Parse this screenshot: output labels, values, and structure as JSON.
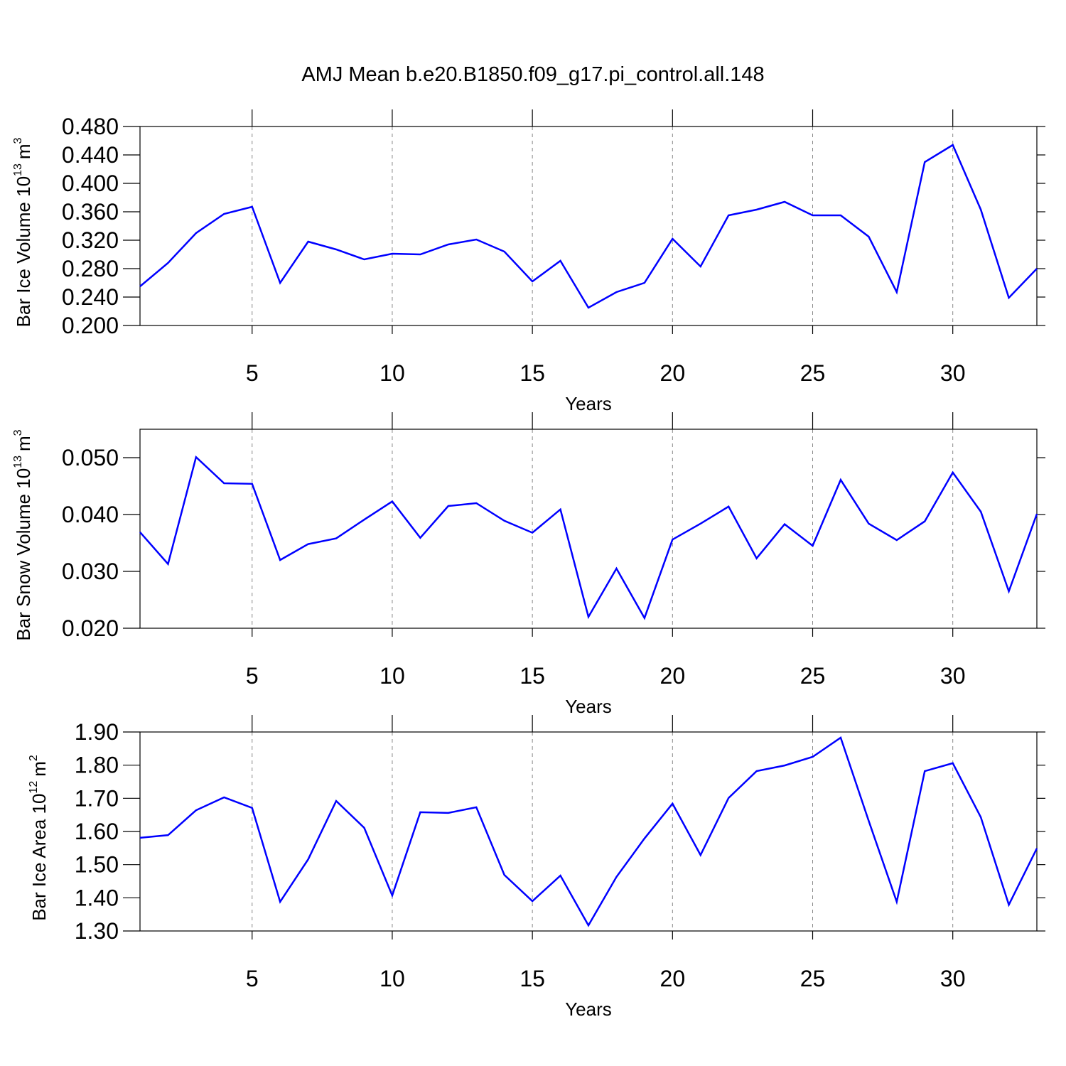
{
  "chart_data": [
    {
      "type": "line",
      "title": "AMJ Mean b.e20.B1850.f09_g17.pi_control.all.148",
      "ylabel": [
        "Bar Ice Volume 10",
        "13",
        "m",
        "3"
      ],
      "xlabel": "Years",
      "x": [
        1,
        2,
        3,
        4,
        5,
        6,
        7,
        8,
        9,
        10,
        11,
        12,
        13,
        14,
        15,
        16,
        17,
        18,
        19,
        20,
        21,
        22,
        23,
        24,
        25,
        26,
        27,
        28,
        29,
        30,
        31,
        32,
        33
      ],
      "values": [
        0.255,
        0.288,
        0.33,
        0.357,
        0.367,
        0.26,
        0.318,
        0.307,
        0.293,
        0.301,
        0.3,
        0.314,
        0.321,
        0.304,
        0.262,
        0.291,
        0.225,
        0.247,
        0.26,
        0.322,
        0.283,
        0.355,
        0.363,
        0.374,
        0.355,
        0.355,
        0.325,
        0.247,
        0.43,
        0.454,
        0.363,
        0.239,
        0.28
      ],
      "color": "#0000ff",
      "xlim": [
        1,
        33
      ],
      "xticks": [
        5,
        10,
        15,
        20,
        25,
        30
      ],
      "xgrid": true,
      "ylim": [
        0.2,
        0.48
      ],
      "yticks": [
        {
          "value": 0.2,
          "label": "0.200"
        },
        {
          "value": 0.24,
          "label": "0.240"
        },
        {
          "value": 0.28,
          "label": "0.280"
        },
        {
          "value": 0.32,
          "label": "0.320"
        },
        {
          "value": 0.36,
          "label": "0.360"
        },
        {
          "value": 0.4,
          "label": "0.400"
        },
        {
          "value": 0.44,
          "label": "0.440"
        },
        {
          "value": 0.48,
          "label": "0.480"
        }
      ]
    },
    {
      "type": "line",
      "ylabel": [
        "Bar Snow Volume 10",
        "13",
        "m",
        "3"
      ],
      "xlabel": "Years",
      "x": [
        1,
        2,
        3,
        4,
        5,
        6,
        7,
        8,
        9,
        10,
        11,
        12,
        13,
        14,
        15,
        16,
        17,
        18,
        19,
        20,
        21,
        22,
        23,
        24,
        25,
        26,
        27,
        28,
        29,
        30,
        31,
        32,
        33
      ],
      "values": [
        0.0369,
        0.0313,
        0.0501,
        0.0455,
        0.0454,
        0.032,
        0.0348,
        0.0358,
        0.0391,
        0.0423,
        0.0359,
        0.0415,
        0.042,
        0.0389,
        0.0368,
        0.0409,
        0.022,
        0.0305,
        0.0218,
        0.0356,
        0.0384,
        0.0414,
        0.0323,
        0.0383,
        0.0345,
        0.0461,
        0.0384,
        0.0355,
        0.0388,
        0.0474,
        0.0405,
        0.0265,
        0.0401
      ],
      "color": "#0000ff",
      "xlim": [
        1,
        33
      ],
      "xticks": [
        5,
        10,
        15,
        20,
        25,
        30
      ],
      "xgrid": true,
      "ylim": [
        0.02,
        0.055
      ],
      "yticks": [
        {
          "value": 0.02,
          "label": "0.020"
        },
        {
          "value": 0.03,
          "label": "0.030"
        },
        {
          "value": 0.04,
          "label": "0.040"
        },
        {
          "value": 0.05,
          "label": "0.050"
        }
      ]
    },
    {
      "type": "line",
      "ylabel": [
        "Bar Ice Area 10",
        "12",
        "m",
        "2"
      ],
      "xlabel": "Years",
      "x": [
        1,
        2,
        3,
        4,
        5,
        6,
        7,
        8,
        9,
        10,
        11,
        12,
        13,
        14,
        15,
        16,
        17,
        18,
        19,
        20,
        21,
        22,
        23,
        24,
        25,
        26,
        27,
        28,
        29,
        30,
        31,
        32,
        33
      ],
      "values": [
        1.581,
        1.589,
        1.664,
        1.703,
        1.671,
        1.388,
        1.516,
        1.692,
        1.611,
        1.407,
        1.658,
        1.656,
        1.673,
        1.469,
        1.39,
        1.467,
        1.317,
        1.463,
        1.579,
        1.684,
        1.529,
        1.701,
        1.782,
        1.799,
        1.825,
        1.883,
        1.632,
        1.388,
        1.782,
        1.806,
        1.643,
        1.379,
        1.549
      ],
      "color": "#0000ff",
      "xlim": [
        1,
        33
      ],
      "xticks": [
        5,
        10,
        15,
        20,
        25,
        30
      ],
      "xgrid": true,
      "ylim": [
        1.3,
        1.9
      ],
      "yticks": [
        {
          "value": 1.3,
          "label": "1.30"
        },
        {
          "value": 1.4,
          "label": "1.40"
        },
        {
          "value": 1.5,
          "label": "1.50"
        },
        {
          "value": 1.6,
          "label": "1.60"
        },
        {
          "value": 1.7,
          "label": "1.70"
        },
        {
          "value": 1.8,
          "label": "1.80"
        },
        {
          "value": 1.9,
          "label": "1.90"
        }
      ]
    }
  ]
}
